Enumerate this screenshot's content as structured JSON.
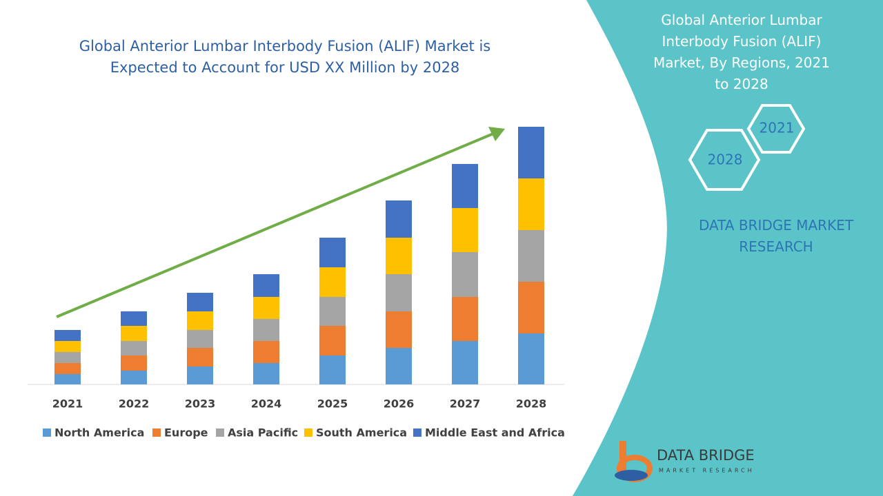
{
  "chart_data": {
    "type": "bar",
    "stacked": true,
    "title": "Global Anterior Lumbar Interbody Fusion (ALIF) Market is Expected to Account for USD XX Million by 2028",
    "categories": [
      "2021",
      "2022",
      "2023",
      "2024",
      "2025",
      "2026",
      "2027",
      "2028"
    ],
    "series": [
      {
        "name": "North America",
        "color": "#5b9bd5",
        "values": [
          15,
          20,
          26,
          31,
          42,
          53,
          63,
          74
        ]
      },
      {
        "name": "Europe",
        "color": "#ed7d31",
        "values": [
          16,
          22,
          27,
          32,
          43,
          53,
          64,
          75
        ]
      },
      {
        "name": "Asia Pacific",
        "color": "#a5a5a5",
        "values": [
          16,
          21,
          26,
          32,
          42,
          54,
          65,
          75
        ]
      },
      {
        "name": "South America",
        "color": "#ffc000",
        "values": [
          16,
          22,
          27,
          32,
          43,
          53,
          64,
          75
        ]
      },
      {
        "name": "Middle East and Africa",
        "color": "#4472c4",
        "values": [
          16,
          21,
          27,
          33,
          43,
          54,
          64,
          75
        ]
      }
    ]
  },
  "sidebar": {
    "title": "Global Anterior Lumbar Interbody Fusion (ALIF) Market, By Regions, 2021 to 2028",
    "hexagons": [
      "2021",
      "2028"
    ],
    "brand": "DATA BRIDGE MARKET RESEARCH",
    "logo": {
      "name": "DATA BRIDGE",
      "tagline": "MARKET RESEARCH"
    }
  }
}
